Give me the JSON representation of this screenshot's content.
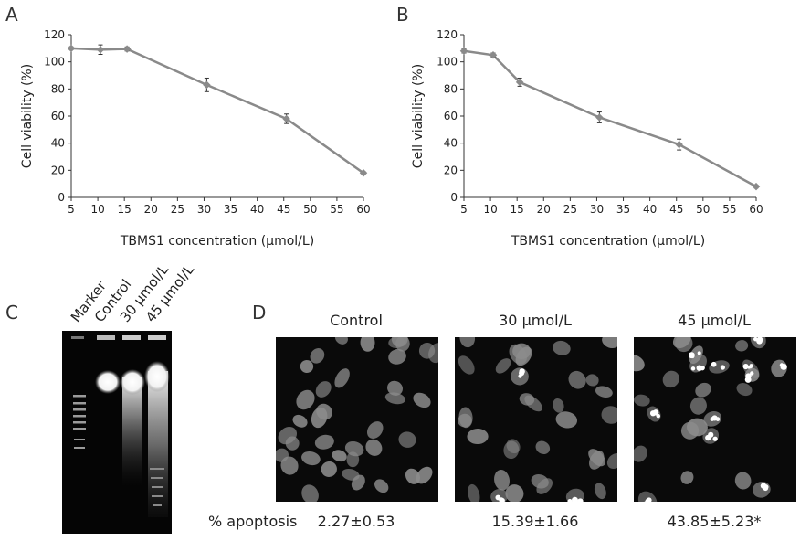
{
  "panels": {
    "a_letter": "A",
    "b_letter": "B",
    "c_letter": "C",
    "d_letter": "D"
  },
  "chart_data": [
    {
      "type": "line",
      "panel": "A",
      "xlabel": "TBMS1 concentration (μmol/L)",
      "ylabel": "Cell viability (%)",
      "xlim": [
        5,
        60
      ],
      "ylim": [
        0,
        120
      ],
      "xticks": [
        5,
        10,
        15,
        20,
        25,
        30,
        35,
        40,
        45,
        50,
        55,
        60
      ],
      "yticks": [
        0,
        20,
        40,
        60,
        80,
        100,
        120
      ],
      "grid": false,
      "series": [
        {
          "x": [
            5,
            10.5,
            15.5,
            30.5,
            45.5,
            60
          ],
          "y": [
            110,
            109,
            109.5,
            83,
            58,
            18
          ],
          "error": [
            1,
            3.5,
            1.5,
            5,
            3.5,
            1
          ],
          "color": "#8a8a8a"
        }
      ]
    },
    {
      "type": "line",
      "panel": "B",
      "xlabel": "TBMS1 concentration (μmol/L)",
      "ylabel": "Cell viability (%)",
      "xlim": [
        5,
        60
      ],
      "ylim": [
        0,
        120
      ],
      "xticks": [
        5,
        10,
        15,
        20,
        25,
        30,
        35,
        40,
        45,
        50,
        55,
        60
      ],
      "yticks": [
        0,
        20,
        40,
        60,
        80,
        100,
        120
      ],
      "grid": false,
      "series": [
        {
          "x": [
            5,
            10.5,
            15.5,
            30.5,
            45.5,
            60
          ],
          "y": [
            108,
            105,
            85,
            59,
            39,
            8
          ],
          "error": [
            1.5,
            1.5,
            3,
            4,
            4,
            1
          ],
          "color": "#8a8a8a"
        }
      ]
    }
  ],
  "gel": {
    "lanes": [
      "Marker",
      "Control",
      "30 μmol/L",
      "45 μmol/L"
    ]
  },
  "microscopy": {
    "titles": [
      "Control",
      "30 μmol/L",
      "45 μmol/L"
    ],
    "row_label": "% apoptosis",
    "values": [
      "2.27±0.53",
      "15.39±1.66",
      "43.85±5.23*"
    ]
  }
}
